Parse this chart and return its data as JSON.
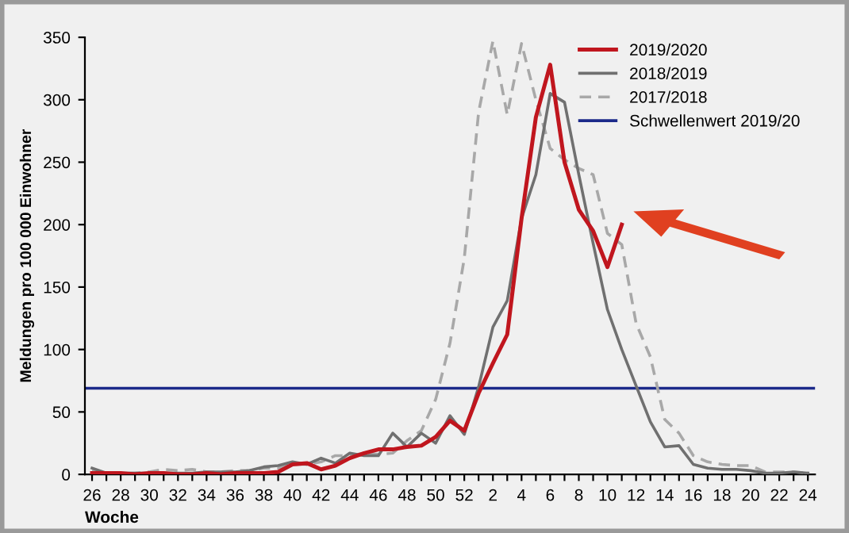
{
  "chart_data": {
    "type": "line",
    "xlabel": "Woche",
    "ylabel": "Meldungen pro 100 000 Einwohner",
    "categories": [
      "26",
      null,
      "28",
      null,
      "30",
      null,
      "32",
      null,
      "34",
      null,
      "36",
      null,
      "38",
      null,
      "40",
      null,
      "42",
      null,
      "44",
      null,
      "46",
      null,
      "48",
      null,
      "50",
      null,
      "52",
      null,
      "2",
      null,
      "4",
      null,
      "6",
      null,
      "8",
      null,
      "10",
      null,
      "12",
      null,
      "14",
      null,
      "16",
      null,
      "18",
      null,
      "20",
      null,
      "22",
      null,
      "24"
    ],
    "series": [
      {
        "name": "2019/2020",
        "color": "#c0161e",
        "line_style": "solid",
        "values": [
          1,
          1,
          1,
          0,
          1,
          1,
          0,
          0,
          1,
          0,
          1,
          1,
          1,
          2,
          8,
          9,
          4,
          7,
          13,
          17,
          20,
          20,
          22,
          23,
          30,
          43,
          35,
          65,
          89,
          112,
          205,
          286,
          328,
          250,
          212,
          195,
          166,
          200,
          null,
          null,
          null,
          null,
          null,
          null,
          null,
          null,
          null,
          null,
          null,
          null,
          null
        ]
      },
      {
        "name": "2018/2019",
        "color": "#707070",
        "line_style": "solid",
        "values": [
          5,
          1,
          1,
          1,
          1,
          1,
          1,
          1,
          2,
          2,
          2,
          3,
          6,
          7,
          10,
          8,
          13,
          9,
          17,
          15,
          15,
          33,
          22,
          33,
          25,
          47,
          32,
          70,
          118,
          139,
          205,
          240,
          305,
          298,
          240,
          185,
          132,
          100,
          71,
          42,
          22,
          23,
          8,
          5,
          4,
          4,
          3,
          1,
          1,
          2,
          1
        ]
      },
      {
        "name": "2017/2018",
        "color": "#a8a8a8",
        "line_style": "dashed",
        "values": [
          3,
          1,
          1,
          1,
          2,
          4,
          3,
          4,
          2,
          2,
          3,
          3,
          5,
          5,
          8,
          8,
          10,
          15,
          15,
          17,
          16,
          17,
          27,
          35,
          60,
          105,
          173,
          290,
          347,
          288,
          345,
          300,
          261,
          252,
          245,
          240,
          193,
          184,
          121,
          94,
          44,
          33,
          15,
          10,
          8,
          7,
          7,
          2,
          2,
          2,
          1
        ]
      }
    ],
    "ref_lines": [
      {
        "axis": "y",
        "value": 69,
        "label": "Schwellenwert 2019/20",
        "color": "#1c2a8a",
        "line_style": "solid"
      }
    ],
    "ylim": [
      0,
      350
    ],
    "yticks": [
      0,
      50,
      100,
      150,
      200,
      250,
      300,
      350
    ],
    "grid": false,
    "legend": "top right",
    "marker": "none"
  }
}
